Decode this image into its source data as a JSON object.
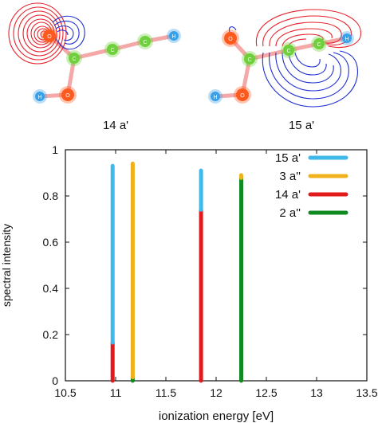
{
  "orbitals": [
    {
      "caption": "14 a'",
      "atoms": {
        "O1": "O",
        "C1": "C",
        "C2": "C",
        "C3": "C",
        "H1": "H",
        "O2": "O",
        "H2": "H"
      }
    },
    {
      "caption": "15 a'",
      "atoms": {
        "O1": "O",
        "C1": "C",
        "C2": "C",
        "C3": "C",
        "H1": "H",
        "O2": "O",
        "H2": "H"
      }
    }
  ],
  "colors": {
    "positive_lobe": "#e8202a",
    "negative_lobe": "#1f2fd1",
    "bond": "#f4a8a8",
    "O": "#ff5a1e",
    "C": "#6ed03a",
    "H": "#3aa0e8"
  },
  "chart_data": {
    "type": "bar",
    "xlabel": "ionization energy [eV]",
    "ylabel": "spectral intensity",
    "xlim": [
      10.5,
      13.5
    ],
    "ylim": [
      0,
      1
    ],
    "xticks": [
      "10.5",
      "11",
      "11.5",
      "12",
      "12.5",
      "13",
      "13.5"
    ],
    "yticks": [
      "0",
      "0.2",
      "0.4",
      "0.6",
      "0.8",
      "1"
    ],
    "grid": false,
    "legend_position": "top-right",
    "series": [
      {
        "name": "15 a'",
        "color": "#3fb8ea"
      },
      {
        "name": "3 a''",
        "color": "#f0b21c"
      },
      {
        "name": "14 a'",
        "color": "#e31a1c"
      },
      {
        "name": "2 a''",
        "color": "#118a22"
      }
    ],
    "lines": [
      {
        "x": 10.97,
        "segments": [
          {
            "series": "14 a'",
            "value": 0.165
          },
          {
            "series": "15 a'",
            "value": 0.765
          }
        ]
      },
      {
        "x": 11.17,
        "segments": [
          {
            "series": "2 a''",
            "value": 0.015
          },
          {
            "series": "3 a''",
            "value": 0.925
          }
        ]
      },
      {
        "x": 11.85,
        "segments": [
          {
            "series": "14 a'",
            "value": 0.74
          },
          {
            "series": "15 a'",
            "value": 0.17
          }
        ]
      },
      {
        "x": 12.25,
        "segments": [
          {
            "series": "2 a''",
            "value": 0.878
          },
          {
            "series": "3 a''",
            "value": 0.012
          }
        ]
      }
    ]
  }
}
